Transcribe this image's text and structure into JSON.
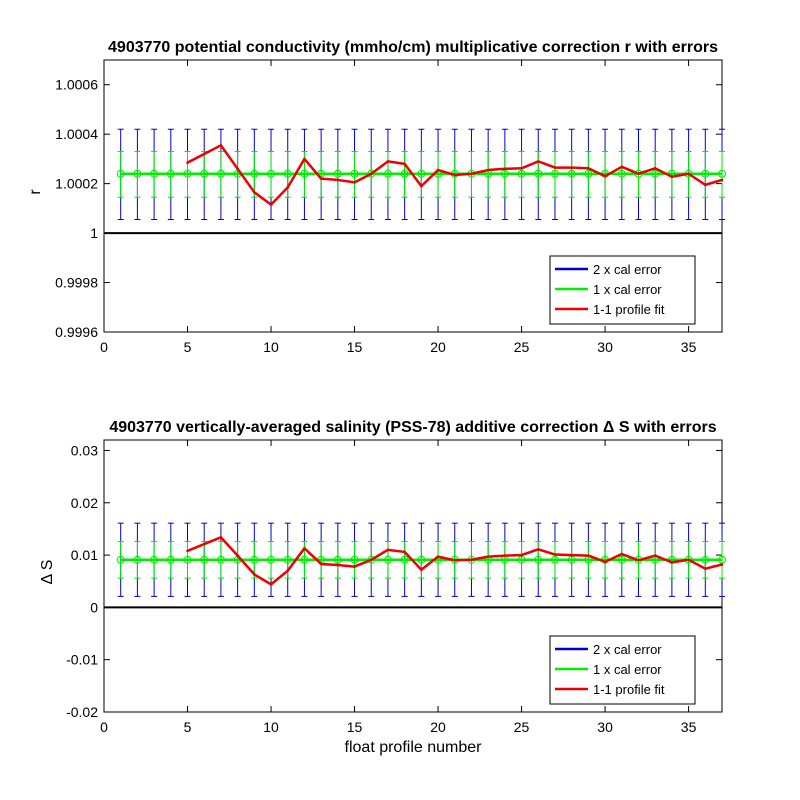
{
  "chart_data": [
    {
      "type": "line",
      "title": "4903770 potential conductivity (mmho/cm) multiplicative correction r with errors",
      "xlabel": "",
      "ylabel": "r",
      "xlim": [
        0,
        37
      ],
      "ylim": [
        0.9996,
        1.0007
      ],
      "xticks": [
        0,
        5,
        10,
        15,
        20,
        25,
        30,
        35
      ],
      "xtick_labels": [
        "0",
        "5",
        "10",
        "15",
        "20",
        "25",
        "30",
        "35"
      ],
      "yticks": [
        0.9996,
        0.9998,
        1,
        1.0002,
        1.0004,
        1.0006
      ],
      "ytick_labels": [
        "0.9996",
        "0.9998",
        "1",
        "1.0002",
        "1.0004",
        "1.0006"
      ],
      "reference_line": 1,
      "legend_position": "bottom-right",
      "legend": [
        "2 x cal error",
        "1 x cal error",
        "1-1 profile fit"
      ],
      "colors": {
        "cal2": "#0000cc",
        "cal1": "#00ee00",
        "fit": "#ee0000",
        "ref": "#000000"
      },
      "x": [
        1,
        2,
        3,
        4,
        5,
        6,
        7,
        8,
        9,
        10,
        11,
        12,
        13,
        14,
        15,
        16,
        17,
        18,
        19,
        20,
        21,
        22,
        23,
        24,
        25,
        26,
        27,
        28,
        29,
        30,
        31,
        32,
        33,
        34,
        35,
        36,
        37
      ],
      "series": [
        {
          "name": "2 x cal error",
          "center": 1.00024,
          "lower": 1.000055,
          "upper": 1.00042
        },
        {
          "name": "1 x cal error",
          "center": 1.00024,
          "lower": 1.000145,
          "upper": 1.00033
        },
        {
          "name": "1-1 profile fit",
          "x": [
            5,
            6,
            7,
            8,
            9,
            10,
            11,
            12,
            13,
            14,
            15,
            16,
            17,
            18,
            19,
            20,
            21,
            22,
            23,
            24,
            25,
            26,
            27,
            28,
            29,
            30,
            31,
            32,
            33,
            34,
            35,
            36,
            37
          ],
          "values": [
            1.000285,
            1.00032,
            1.000355,
            1.00026,
            1.000165,
            1.000115,
            1.000185,
            1.0003,
            1.00022,
            1.000215,
            1.000205,
            1.00024,
            1.00029,
            1.00028,
            1.00019,
            1.000255,
            1.000235,
            1.00024,
            1.000255,
            1.00026,
            1.000262,
            1.00029,
            1.000265,
            1.000265,
            1.000262,
            1.00023,
            1.000268,
            1.00024,
            1.000262,
            1.000228,
            1.00024,
            1.000195,
            1.000215
          ]
        }
      ]
    },
    {
      "type": "line",
      "title": "4903770 vertically-averaged salinity (PSS-78) additive correction Δ S with errors",
      "xlabel": "float profile number",
      "ylabel": "Δ S",
      "xlim": [
        0,
        37
      ],
      "ylim": [
        -0.02,
        0.032
      ],
      "xticks": [
        0,
        5,
        10,
        15,
        20,
        25,
        30,
        35
      ],
      "xtick_labels": [
        "0",
        "5",
        "10",
        "15",
        "20",
        "25",
        "30",
        "35"
      ],
      "yticks": [
        -0.02,
        -0.01,
        0,
        0.01,
        0.02,
        0.03
      ],
      "ytick_labels": [
        "-0.02",
        "-0.01",
        "0",
        "0.01",
        "0.02",
        "0.03"
      ],
      "reference_line": 0,
      "legend_position": "bottom-right",
      "legend": [
        "2 x cal error",
        "1 x cal error",
        "1-1 profile fit"
      ],
      "colors": {
        "cal2": "#0000cc",
        "cal1": "#00ee00",
        "fit": "#ee0000",
        "ref": "#000000"
      },
      "x": [
        1,
        2,
        3,
        4,
        5,
        6,
        7,
        8,
        9,
        10,
        11,
        12,
        13,
        14,
        15,
        16,
        17,
        18,
        19,
        20,
        21,
        22,
        23,
        24,
        25,
        26,
        27,
        28,
        29,
        30,
        31,
        32,
        33,
        34,
        35,
        36,
        37
      ],
      "series": [
        {
          "name": "2 x cal error",
          "center": 0.0091,
          "lower": 0.0021,
          "upper": 0.0161
        },
        {
          "name": "1 x cal error",
          "center": 0.0091,
          "lower": 0.0056,
          "upper": 0.0126
        },
        {
          "name": "1-1 profile fit",
          "x": [
            5,
            6,
            7,
            8,
            9,
            10,
            11,
            12,
            13,
            14,
            15,
            16,
            17,
            18,
            19,
            20,
            21,
            22,
            23,
            24,
            25,
            26,
            27,
            28,
            29,
            30,
            31,
            32,
            33,
            34,
            35,
            36,
            37
          ],
          "values": [
            0.0108,
            0.0121,
            0.0134,
            0.0099,
            0.0063,
            0.0044,
            0.007,
            0.0113,
            0.0083,
            0.0081,
            0.0078,
            0.0091,
            0.011,
            0.0106,
            0.0072,
            0.0097,
            0.009,
            0.0091,
            0.0097,
            0.0099,
            0.01,
            0.0111,
            0.0101,
            0.01,
            0.0099,
            0.0087,
            0.0102,
            0.009,
            0.0099,
            0.0086,
            0.0091,
            0.0074,
            0.0082
          ]
        }
      ]
    }
  ]
}
